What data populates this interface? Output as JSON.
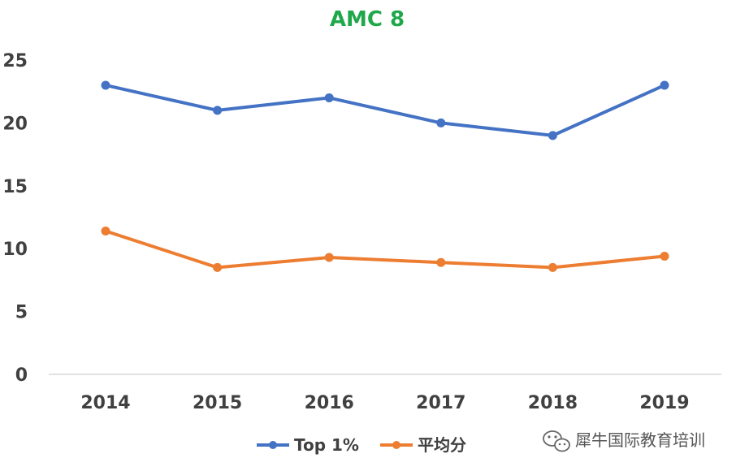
{
  "chart_data": {
    "type": "line",
    "title": "AMC 8",
    "title_color": "#1fa84a",
    "categories": [
      "2014",
      "2015",
      "2016",
      "2017",
      "2018",
      "2019"
    ],
    "series": [
      {
        "name": "Top 1%",
        "color": "#4472c4",
        "values": [
          23,
          21,
          22,
          20,
          19,
          23
        ]
      },
      {
        "name": "平均分",
        "color": "#ed7d31",
        "values": [
          11.4,
          8.5,
          9.3,
          8.9,
          8.5,
          9.4
        ]
      }
    ],
    "yticks": [
      0,
      5,
      10,
      15,
      20,
      25
    ],
    "ylim": [
      0,
      25
    ],
    "grid": false,
    "legend_position": "bottom"
  },
  "watermark": {
    "text": "犀牛国际教育培训",
    "icon": "wechat-icon"
  }
}
